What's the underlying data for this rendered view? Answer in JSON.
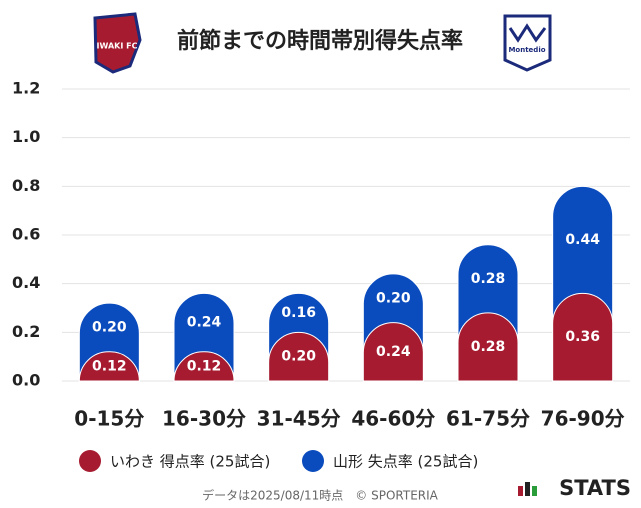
{
  "chart_data": {
    "type": "stacked_bar",
    "title": "前節までの時間帯別得失点率",
    "home_logo_text": "IWAKI FC",
    "away_logo_text": "Montedio",
    "categories": [
      "0-15分",
      "16-30分",
      "31-45分",
      "46-60分",
      "61-75分",
      "76-90分"
    ],
    "series": [
      {
        "name": "いわき 得点率 (25試合)",
        "color": "#a61b30",
        "values": [
          0.12,
          0.12,
          0.2,
          0.24,
          0.28,
          0.36
        ],
        "value_labels": [
          "0.12",
          "0.12",
          "0.20",
          "0.24",
          "0.28",
          "0.36"
        ]
      },
      {
        "name": "山形 失点率 (25試合)",
        "color": "#0a4bbd",
        "values": [
          0.2,
          0.24,
          0.16,
          0.2,
          0.28,
          0.44
        ],
        "value_labels": [
          "0.20",
          "0.24",
          "0.16",
          "0.20",
          "0.28",
          "0.44"
        ]
      }
    ],
    "ylim": [
      0,
      1.2
    ],
    "yticks": [
      {
        "value": 0,
        "label": "0.0"
      },
      0.2,
      0.4,
      0.6,
      0.8,
      {
        "value": 1,
        "label": "1.0"
      },
      1.2
    ],
    "grid": true,
    "footnote": "データは2025/08/11時点　© SPORTERIA",
    "brand": "STATS"
  }
}
